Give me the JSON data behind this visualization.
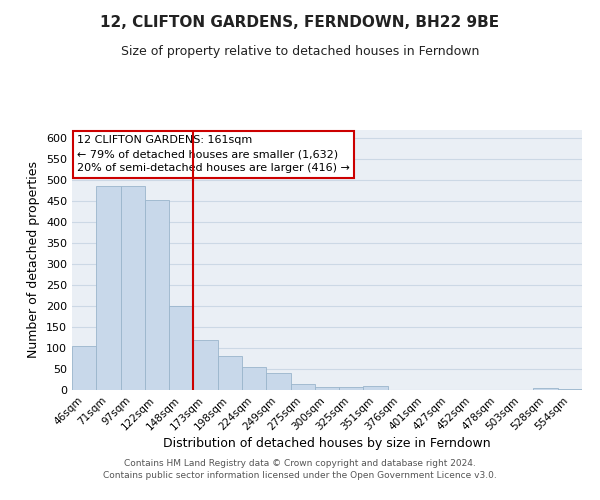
{
  "title": "12, CLIFTON GARDENS, FERNDOWN, BH22 9BE",
  "subtitle": "Size of property relative to detached houses in Ferndown",
  "xlabel": "Distribution of detached houses by size in Ferndown",
  "ylabel": "Number of detached properties",
  "bar_labels": [
    "46sqm",
    "71sqm",
    "97sqm",
    "122sqm",
    "148sqm",
    "173sqm",
    "198sqm",
    "224sqm",
    "249sqm",
    "275sqm",
    "300sqm",
    "325sqm",
    "351sqm",
    "376sqm",
    "401sqm",
    "427sqm",
    "452sqm",
    "478sqm",
    "503sqm",
    "528sqm",
    "554sqm"
  ],
  "bar_heights": [
    105,
    487,
    487,
    453,
    200,
    120,
    82,
    56,
    40,
    15,
    8,
    8,
    10,
    0,
    0,
    0,
    0,
    0,
    0,
    5,
    3
  ],
  "bar_color": "#c8d8ea",
  "bar_edge_color": "#9ab5cc",
  "vline_x": 4.5,
  "vline_color": "#cc0000",
  "annotation_title": "12 CLIFTON GARDENS: 161sqm",
  "annotation_line1": "← 79% of detached houses are smaller (1,632)",
  "annotation_line2": "20% of semi-detached houses are larger (416) →",
  "annotation_box_color": "#ffffff",
  "annotation_box_edge": "#cc0000",
  "footer_line1": "Contains HM Land Registry data © Crown copyright and database right 2024.",
  "footer_line2": "Contains public sector information licensed under the Open Government Licence v3.0.",
  "ylim": [
    0,
    620
  ],
  "yticks": [
    0,
    50,
    100,
    150,
    200,
    250,
    300,
    350,
    400,
    450,
    500,
    550,
    600
  ],
  "grid_color": "#ccd8e5",
  "background_color": "#eaeff5"
}
